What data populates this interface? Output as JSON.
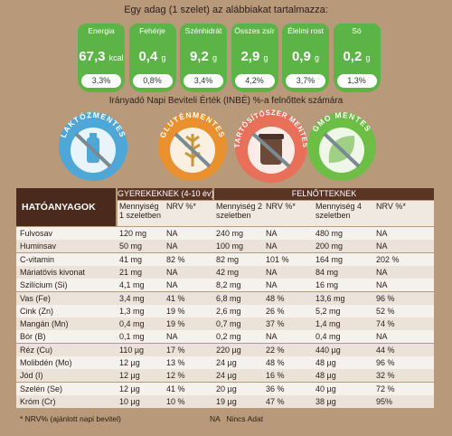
{
  "header": {
    "serving_note": "Egy adag (1 szelet) az alábbiakat tartalmazza:",
    "badges": [
      {
        "label": "Energia",
        "value": "67,3",
        "unit": "kcal",
        "percent": "3,3%"
      },
      {
        "label": "Fehérje",
        "value": "0,4",
        "unit": "g",
        "percent": "0,8%"
      },
      {
        "label": "Szénhidrát",
        "value": "9,2",
        "unit": "g",
        "percent": "3,4%"
      },
      {
        "label": "Összes zsír",
        "value": "2,9",
        "unit": "g",
        "percent": "4,2%"
      },
      {
        "label": "Élelmi rost",
        "value": "0,9",
        "unit": "g",
        "percent": "3,7%"
      },
      {
        "label": "Só",
        "value": "0,2",
        "unit": "g",
        "percent": "1,3%"
      }
    ],
    "reference_note": "Irányadó Napi Beviteli Érték (INBÉ) %-a felnőttek számára"
  },
  "icons": [
    "LAKTÓZMENTES",
    "GLUTÉNMENTES",
    "TARTÓSÍTÓSZER MENTES",
    "GMO MENTES"
  ],
  "table": {
    "title": "HATÓANYAGOK",
    "groups": [
      "GYEREKEKNEK (4-10 év)",
      "FELNŐTTEKNEK"
    ],
    "columns": [
      "Mennyiség 1 szeletben",
      "NRV %*",
      "Mennyiség 2 szeletben",
      "NRV %*",
      "Mennyiség 4 szeletben",
      "NRV %*"
    ],
    "rows": [
      [
        "Fulvosav",
        "120 mg",
        "NA",
        "240 mg",
        "NA",
        "480 mg",
        "NA"
      ],
      [
        "Huminsav",
        "50 mg",
        "NA",
        "100 mg",
        "NA",
        "200 mg",
        "NA"
      ],
      [
        "C-vitamin",
        "41 mg",
        "82 %",
        "82 mg",
        "101 %",
        "164 mg",
        "202 %"
      ],
      [
        "Máriatövis kivonat",
        "21 mg",
        "NA",
        "42 mg",
        "NA",
        "84 mg",
        "NA"
      ],
      [
        "Szilícium (Si)",
        "4,1 mg",
        "NA",
        "8,2 mg",
        "NA",
        "16 mg",
        "NA"
      ],
      [
        "Vas (Fe)",
        "3,4 mg",
        "41 %",
        "6,8 mg",
        "48 %",
        "13,6 mg",
        "96 %"
      ],
      [
        "Cink (Zn)",
        "1,3 mg",
        "19 %",
        "2,6 mg",
        "26 %",
        "5,2 mg",
        "52 %"
      ],
      [
        "Mangán (Mn)",
        "0,4 mg",
        "19 %",
        "0,7 mg",
        "37 %",
        "1,4 mg",
        "74 %"
      ],
      [
        "Bór (B)",
        "0,1 mg",
        "NA",
        "0,2 mg",
        "NA",
        "0,4 mg",
        "NA"
      ],
      [
        "Réz (Cu)",
        "110 µg",
        "17 %",
        "220 µg",
        "22 %",
        "440 µg",
        "44 %"
      ],
      [
        "Molibdén (Mo)",
        "12 µg",
        "13 %",
        "24 µg",
        "48 %",
        "48 µg",
        "96 %"
      ],
      [
        "Jód (I)",
        "12 µg",
        "12 %",
        "24 µg",
        "16 %",
        "48 µg",
        "32 %"
      ],
      [
        "Szelén (Se)",
        "12 µg",
        "41 %",
        "20 µg",
        "36 %",
        "40 µg",
        "72 %"
      ],
      [
        "Króm (Cr)",
        "10 µg",
        "10 %",
        "19 µg",
        "47 %",
        "38 µg",
        "95%"
      ]
    ]
  },
  "footer": {
    "nrv_note": "* NRV% (ajánlott napi bevitel)",
    "na_note": "NA   Nincs Adat"
  }
}
